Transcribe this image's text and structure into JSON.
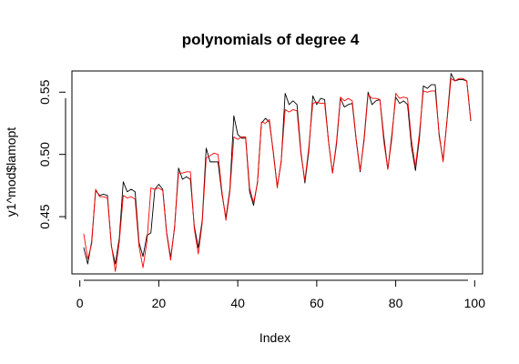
{
  "chart_data": {
    "type": "line",
    "title": "polynomials of degree 4",
    "xlabel": "Index",
    "ylabel": "y1^mod$lamopt",
    "xlim": [
      -2,
      102
    ],
    "ylim": [
      0.404,
      0.567
    ],
    "xticks": [
      0,
      20,
      40,
      60,
      80,
      100
    ],
    "yticks": [
      0.45,
      0.5,
      0.55
    ],
    "xtick_labels": [
      "0",
      "20",
      "40",
      "60",
      "80",
      "100"
    ],
    "ytick_labels": [
      "0.45",
      "0.50",
      "0.55"
    ],
    "grid": false,
    "legend": "none",
    "series": [
      {
        "color": "#000000",
        "x": [
          1,
          2,
          3,
          4,
          5,
          6,
          7,
          8,
          9,
          10,
          11,
          12,
          13,
          14,
          15,
          16,
          17,
          18,
          19,
          20,
          21,
          22,
          23,
          24,
          25,
          26,
          27,
          28,
          29,
          30,
          31,
          32,
          33,
          34,
          35,
          36,
          37,
          38,
          39,
          40,
          41,
          42,
          43,
          44,
          45,
          46,
          47,
          48,
          49,
          50,
          51,
          52,
          53,
          54,
          55,
          56,
          57,
          58,
          59,
          60,
          61,
          62,
          63,
          64,
          65,
          66,
          67,
          68,
          69,
          70,
          71,
          72,
          73,
          74,
          75,
          76,
          77,
          78,
          79,
          80,
          81,
          82,
          83,
          84,
          85,
          86,
          87,
          88,
          89,
          90,
          91,
          92,
          93,
          94,
          95,
          96,
          97,
          98,
          99
        ],
        "y": [
          0.425,
          0.412,
          0.43,
          0.471,
          0.467,
          0.468,
          0.467,
          0.426,
          0.412,
          0.433,
          0.478,
          0.47,
          0.472,
          0.47,
          0.429,
          0.418,
          0.435,
          0.437,
          0.472,
          0.476,
          0.472,
          0.437,
          0.417,
          0.441,
          0.489,
          0.48,
          0.482,
          0.48,
          0.442,
          0.425,
          0.447,
          0.505,
          0.494,
          0.494,
          0.494,
          0.468,
          0.449,
          0.472,
          0.531,
          0.516,
          0.513,
          0.513,
          0.47,
          0.459,
          0.478,
          0.525,
          0.529,
          0.526,
          0.502,
          0.474,
          0.494,
          0.549,
          0.54,
          0.543,
          0.54,
          0.502,
          0.477,
          0.503,
          0.547,
          0.54,
          0.545,
          0.544,
          0.51,
          0.485,
          0.508,
          0.545,
          0.538,
          0.54,
          0.541,
          0.511,
          0.486,
          0.513,
          0.55,
          0.54,
          0.543,
          0.544,
          0.514,
          0.488,
          0.515,
          0.546,
          0.541,
          0.543,
          0.54,
          0.506,
          0.487,
          0.513,
          0.555,
          0.553,
          0.556,
          0.556,
          0.515,
          0.495,
          0.528,
          0.565,
          0.559,
          0.56,
          0.56,
          0.559,
          0.527
        ]
      },
      {
        "color": "#ff0000",
        "x": [
          1,
          2,
          3,
          4,
          5,
          6,
          7,
          8,
          9,
          10,
          11,
          12,
          13,
          14,
          15,
          16,
          17,
          18,
          19,
          20,
          21,
          22,
          23,
          24,
          25,
          26,
          27,
          28,
          29,
          30,
          31,
          32,
          33,
          34,
          35,
          36,
          37,
          38,
          39,
          40,
          41,
          42,
          43,
          44,
          45,
          46,
          47,
          48,
          49,
          50,
          51,
          52,
          53,
          54,
          55,
          56,
          57,
          58,
          59,
          60,
          61,
          62,
          63,
          64,
          65,
          66,
          67,
          68,
          69,
          70,
          71,
          72,
          73,
          74,
          75,
          76,
          77,
          78,
          79,
          80,
          81,
          82,
          83,
          84,
          85,
          86,
          87,
          88,
          89,
          90,
          91,
          92,
          93,
          94,
          95,
          96,
          97,
          98,
          99
        ],
        "y": [
          0.436,
          0.416,
          0.428,
          0.472,
          0.466,
          0.466,
          0.465,
          0.427,
          0.406,
          0.43,
          0.467,
          0.465,
          0.466,
          0.464,
          0.426,
          0.409,
          0.43,
          0.473,
          0.472,
          0.473,
          0.471,
          0.436,
          0.415,
          0.442,
          0.485,
          0.485,
          0.486,
          0.486,
          0.44,
          0.42,
          0.445,
          0.497,
          0.499,
          0.501,
          0.5,
          0.47,
          0.447,
          0.47,
          0.514,
          0.512,
          0.514,
          0.514,
          0.473,
          0.461,
          0.477,
          0.526,
          0.525,
          0.528,
          0.501,
          0.473,
          0.495,
          0.536,
          0.534,
          0.536,
          0.535,
          0.5,
          0.479,
          0.506,
          0.541,
          0.542,
          0.541,
          0.541,
          0.51,
          0.485,
          0.51,
          0.546,
          0.543,
          0.545,
          0.543,
          0.512,
          0.487,
          0.511,
          0.548,
          0.545,
          0.545,
          0.544,
          0.51,
          0.488,
          0.512,
          0.549,
          0.545,
          0.546,
          0.545,
          0.511,
          0.49,
          0.517,
          0.551,
          0.55,
          0.551,
          0.551,
          0.517,
          0.494,
          0.527,
          0.561,
          0.559,
          0.561,
          0.561,
          0.559,
          0.528
        ]
      }
    ]
  }
}
